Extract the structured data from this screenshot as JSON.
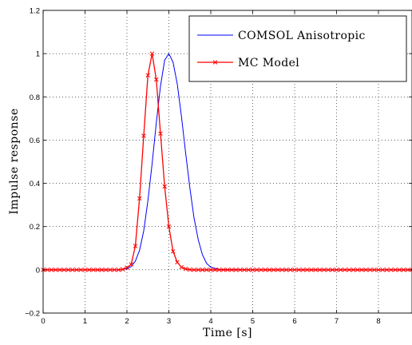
{
  "chart_data": {
    "type": "line",
    "xlabel": "Time [s]",
    "ylabel": "Impulse response",
    "xlim": [
      0,
      8.8
    ],
    "ylim": [
      -0.2,
      1.2
    ],
    "xticks": [
      "0",
      "1",
      "2",
      "3",
      "4",
      "5",
      "6",
      "7",
      "8"
    ],
    "yticks": [
      "−0.2",
      "0",
      "0.2",
      "0.4",
      "0.6",
      "0.8",
      "1",
      "1.2"
    ],
    "grid": true,
    "legend_position": "top-right",
    "series": [
      {
        "name": "COMSOL Anisotropic",
        "color": "#0000ff",
        "marker": "none",
        "x": [
          0,
          1,
          1.8,
          2.0,
          2.1,
          2.2,
          2.3,
          2.4,
          2.5,
          2.6,
          2.7,
          2.8,
          2.9,
          3.0,
          3.1,
          3.2,
          3.3,
          3.4,
          3.5,
          3.6,
          3.7,
          3.8,
          3.9,
          4.0,
          4.2,
          5,
          6,
          7,
          8,
          8.8
        ],
        "y": [
          0,
          0,
          0,
          0.005,
          0.015,
          0.04,
          0.09,
          0.18,
          0.32,
          0.49,
          0.68,
          0.85,
          0.97,
          1.0,
          0.96,
          0.86,
          0.71,
          0.54,
          0.38,
          0.24,
          0.14,
          0.07,
          0.03,
          0.012,
          0.002,
          0,
          0,
          0,
          0,
          0
        ]
      },
      {
        "name": "MC Model",
        "color": "#ff0000",
        "marker": "x",
        "x": [
          0,
          0.1,
          0.2,
          0.3,
          0.4,
          0.5,
          0.6,
          0.7,
          0.8,
          0.9,
          1.0,
          1.1,
          1.2,
          1.3,
          1.4,
          1.5,
          1.6,
          1.7,
          1.8,
          1.9,
          2.0,
          2.1,
          2.2,
          2.3,
          2.4,
          2.5,
          2.6,
          2.7,
          2.8,
          2.9,
          3.0,
          3.1,
          3.2,
          3.3,
          3.4,
          3.5,
          3.6,
          3.7,
          3.8,
          3.9,
          4.0,
          4.1,
          4.2,
          4.3,
          4.4,
          4.5,
          4.6,
          4.7,
          4.8,
          4.9,
          5.0,
          5.1,
          5.2,
          5.3,
          5.4,
          5.5,
          5.6,
          5.7,
          5.8,
          5.9,
          6.0,
          6.1,
          6.2,
          6.3,
          6.4,
          6.5,
          6.6,
          6.7,
          6.8,
          6.9,
          7.0,
          7.1,
          7.2,
          7.3,
          7.4,
          7.5,
          7.6,
          7.7,
          7.8,
          7.9,
          8.0,
          8.1,
          8.2,
          8.3,
          8.4,
          8.5,
          8.6,
          8.7,
          8.8
        ],
        "y": [
          0,
          0,
          0,
          0,
          0,
          0,
          0,
          0,
          0,
          0,
          0,
          0,
          0,
          0,
          0,
          0,
          0,
          0,
          0,
          0.002,
          0.01,
          0.025,
          0.11,
          0.33,
          0.62,
          0.9,
          1.0,
          0.88,
          0.63,
          0.385,
          0.2,
          0.085,
          0.035,
          0.012,
          0.004,
          0.001,
          0,
          0,
          0,
          0,
          0,
          0,
          0,
          0,
          0,
          0,
          0,
          0,
          0,
          0,
          0,
          0,
          0,
          0,
          0,
          0,
          0,
          0,
          0,
          0,
          0,
          0,
          0,
          0,
          0,
          0,
          0,
          0,
          0,
          0,
          0,
          0,
          0,
          0,
          0,
          0,
          0,
          0,
          0,
          0,
          0,
          0,
          0,
          0,
          0,
          0,
          0,
          0,
          0
        ]
      }
    ]
  }
}
